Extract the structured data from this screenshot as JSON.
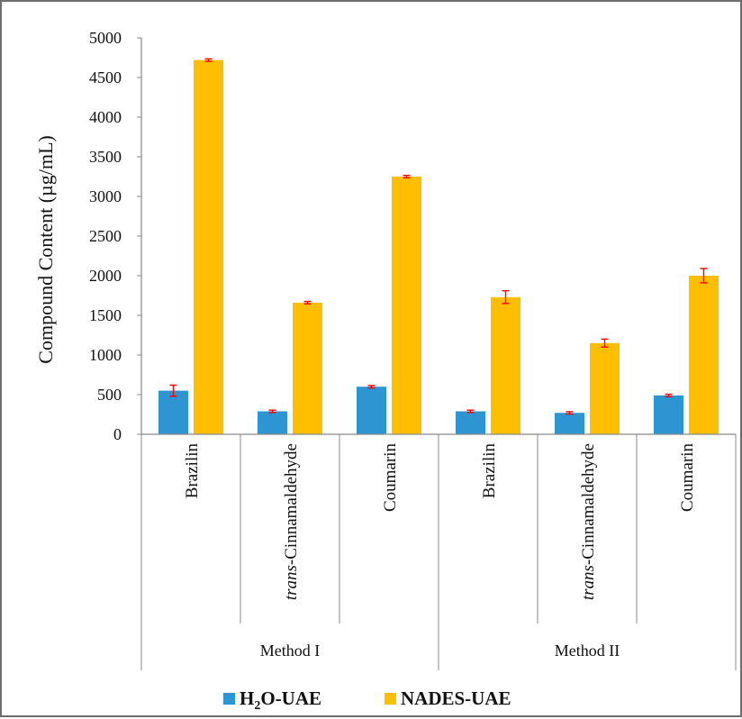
{
  "chart_data": {
    "type": "bar",
    "ylabel": "Compound Content (µg/mL)",
    "ylim": [
      0,
      5000
    ],
    "yticks": [
      0,
      500,
      1000,
      1500,
      2000,
      2500,
      3000,
      3500,
      4000,
      4500,
      5000
    ],
    "groups": [
      {
        "label": "Method I",
        "categories": [
          "Brazilin",
          "trans-Cinnamaldehyde",
          "Coumarin"
        ]
      },
      {
        "label": "Method II",
        "categories": [
          "Brazilin",
          "trans-Cinnamaldehyde",
          "Coumarin"
        ]
      }
    ],
    "category_parts": {
      "italic_prefix": "trans",
      "rest": "-Cinnamaldehyde"
    },
    "series": [
      {
        "name": "H2O-UAE",
        "name_parts": {
          "a": "H",
          "sub": "2",
          "b": "O-UAE"
        },
        "color": "#2e95d3",
        "values": [
          550,
          290,
          600,
          290,
          270,
          490
        ],
        "errors": [
          70,
          15,
          15,
          15,
          15,
          15
        ]
      },
      {
        "name": "NADES-UAE",
        "name_parts": {
          "a": "NADES-UAE"
        },
        "color": "#ffbf00",
        "values": [
          4720,
          1660,
          3250,
          1730,
          1150,
          2000
        ],
        "errors": [
          15,
          15,
          15,
          80,
          50,
          90
        ]
      }
    ],
    "error_bar_color": "#ff0000",
    "legend_position": "bottom",
    "grid": false
  }
}
